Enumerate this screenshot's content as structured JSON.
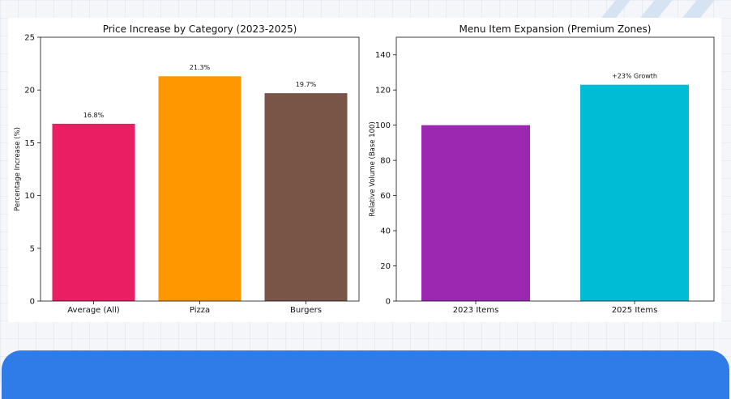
{
  "colors": {
    "background": "#f4f6fa",
    "banner": "#2f7be8",
    "deco_stripe": "#d6e3f2"
  },
  "chart_data": [
    {
      "type": "bar",
      "title": "Price Increase by Category (2023-2025)",
      "xlabel": "",
      "ylabel": "Percentage Increase (%)",
      "categories": [
        "Average (All)",
        "Pizza",
        "Burgers"
      ],
      "values": [
        16.8,
        21.3,
        19.7
      ],
      "data_labels": [
        "16.8%",
        "21.3%",
        "19.7%"
      ],
      "colors": [
        "#e91e63",
        "#ff9800",
        "#795548"
      ],
      "ylim": [
        0,
        25
      ],
      "yticks": [
        0,
        5,
        10,
        15,
        20,
        25
      ],
      "grid": false
    },
    {
      "type": "bar",
      "title": "Menu Item Expansion (Premium Zones)",
      "xlabel": "",
      "ylabel": "Relative Volume (Base 100)",
      "categories": [
        "2023 Items",
        "2025 Items"
      ],
      "values": [
        100,
        123
      ],
      "data_labels": [
        "",
        "+23% Growth"
      ],
      "colors": [
        "#9c27b0",
        "#00bcd4"
      ],
      "ylim": [
        0,
        150
      ],
      "yticks": [
        0,
        20,
        40,
        60,
        80,
        100,
        120,
        140
      ],
      "grid": false
    }
  ]
}
